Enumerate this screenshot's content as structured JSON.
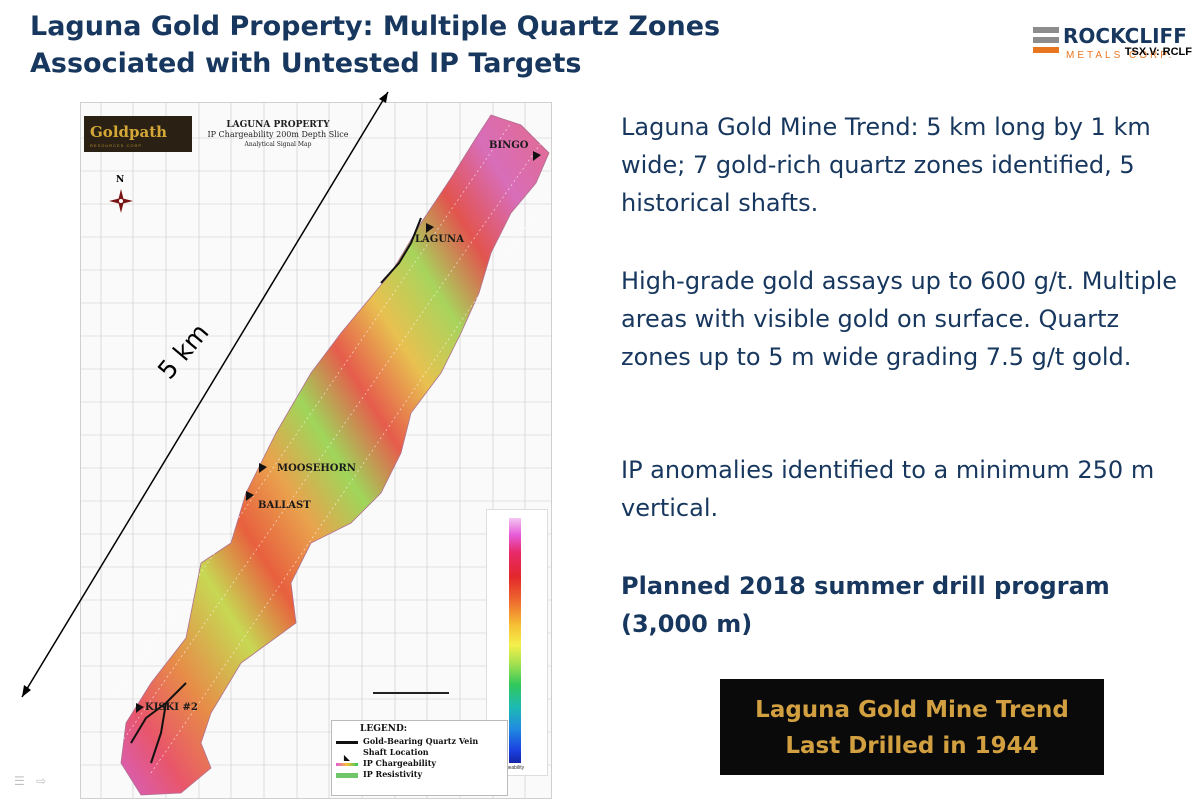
{
  "title": {
    "line1": "Laguna Gold Property: Multiple Quartz Zones",
    "line2": "Associated with Untested IP Targets"
  },
  "logo": {
    "name": "ROCKCLIFF",
    "sub": "METALS CORP.",
    "ticker": "TSX.V:  RCLF",
    "colors": [
      "#e8761f",
      "#8c8c8c",
      "#8c8c8c",
      "#17375e"
    ]
  },
  "map": {
    "company": "Goldpath",
    "company_sub": "RESOURCES CORP.",
    "title1": "LAGUNA PROPERTY",
    "title2": "IP Chargeability 200m Depth Slice",
    "title3": "Analytical Signal Map",
    "north": "N",
    "labels": {
      "bingo": "BINGO",
      "laguna": "LAGUNA",
      "moosehorn": "MOOSEHORN",
      "ballast": "BALLAST",
      "kiski": "KISKI #2"
    },
    "legend": {
      "heading": "LEGEND:",
      "vein": "Gold-Bearing Quartz Vein",
      "shaft": "Shaft Location",
      "charge": "IP Chargeability",
      "resist": "IP Resistivity"
    },
    "colorbar_label": "Chargeability"
  },
  "scale_label": "5 km",
  "paragraphs": {
    "p1": "Laguna Gold Mine Trend: 5 km long by 1 km wide; 7 gold-rich quartz zones identified, 5 historical shafts.",
    "p2": "High-grade gold assays up to 600 g/t. Multiple areas with visible gold on surface. Quartz zones up to 5 m wide grading 7.5 g/t gold.",
    "p3": "IP anomalies identified to a minimum 250 m vertical.",
    "p4": "Planned 2018 summer drill program (3,000 m)"
  },
  "banner": {
    "line1": "Laguna Gold Mine Trend",
    "line2": "Last Drilled in 1944",
    "text_color": "#d2a040"
  }
}
